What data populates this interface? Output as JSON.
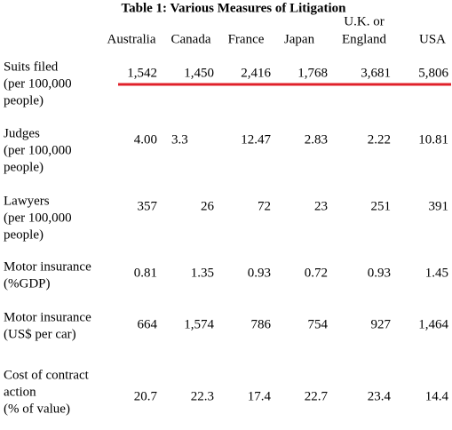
{
  "table": {
    "title": "Table 1:  Various Measures of Litigation",
    "columns": [
      [
        "Australia"
      ],
      [
        "Canada"
      ],
      [
        "France"
      ],
      [
        "Japan"
      ],
      [
        "U.K. or",
        "England"
      ],
      [
        "USA"
      ]
    ],
    "rows": [
      {
        "label": [
          "Suits filed",
          "(per 100,000",
          "people)"
        ],
        "cells": [
          "1,542",
          "1,450",
          "2,416",
          "1,768",
          "3,681",
          "5,806"
        ]
      },
      {
        "label": [
          "Judges",
          "(per 100,000",
          "people)"
        ],
        "cells": [
          "4.00",
          "3.3",
          "12.47",
          "2.83",
          "2.22",
          "10.81"
        ]
      },
      {
        "label": [
          "Lawyers",
          "(per 100,000",
          "people)"
        ],
        "cells": [
          "357",
          "26",
          "72",
          "23",
          "251",
          "391"
        ]
      },
      {
        "label": [
          "Motor insurance",
          "(%GDP)"
        ],
        "cells": [
          "0.81",
          "1.35",
          "0.93",
          "0.72",
          "0.93",
          "1.45"
        ]
      },
      {
        "label": [
          "Motor insurance",
          "(US$ per car)"
        ],
        "cells": [
          "664",
          "1,574",
          "786",
          "754",
          "927",
          "1,464"
        ]
      },
      {
        "label": [
          "Cost of contract",
          "action",
          "(% of value)"
        ],
        "cells": [
          "20.7",
          "22.3",
          "17.4",
          "22.7",
          "23.4",
          "14.4"
        ]
      }
    ]
  }
}
